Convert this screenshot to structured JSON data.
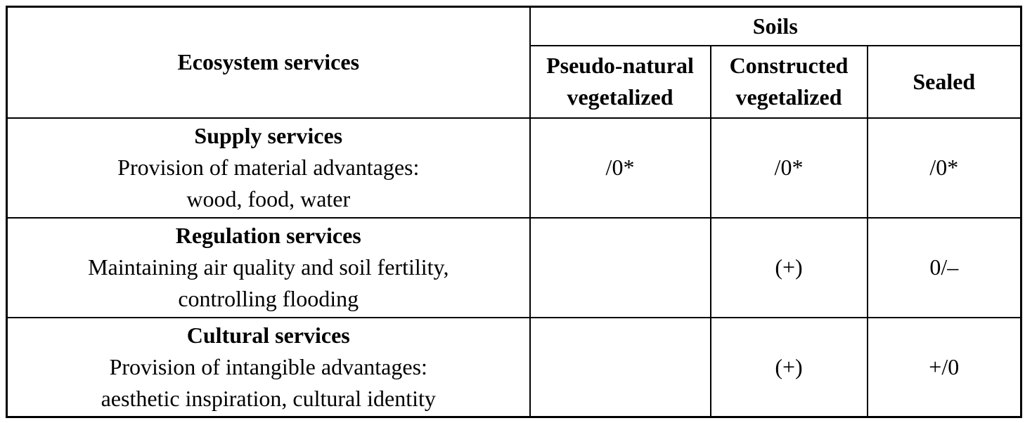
{
  "table": {
    "corner_header": "Ecosystem services",
    "group_header": "Soils",
    "columns": [
      "Pseudo-natural vegetalized",
      "Constructed vegetalized",
      "Sealed"
    ],
    "rows": [
      {
        "title": "Supply services",
        "desc_line1": "Provision of material advantages:",
        "desc_line2": "wood, food, water",
        "values": [
          "/0*",
          "/0*",
          "/0*"
        ]
      },
      {
        "title": "Regulation services",
        "desc_line1": "Maintaining air quality and soil fertility,",
        "desc_line2": "controlling flooding",
        "values": [
          "",
          "(+)",
          "0/–"
        ]
      },
      {
        "title": "Cultural services",
        "desc_line1": "Provision of intangible advantages:",
        "desc_line2": "aesthetic inspiration, cultural identity",
        "values": [
          "",
          "(+)",
          "+/0"
        ]
      }
    ],
    "colors": {
      "text": "#000000",
      "border": "#000000",
      "background": "#ffffff"
    }
  }
}
